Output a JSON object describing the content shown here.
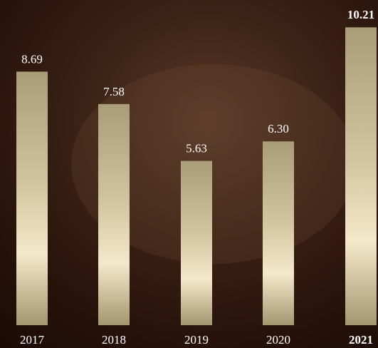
{
  "chart_data": {
    "type": "bar",
    "categories": [
      "2017",
      "2018",
      "2019",
      "2020",
      "2021"
    ],
    "values": [
      8.69,
      7.58,
      5.63,
      6.3,
      10.21
    ],
    "value_labels": [
      "8.69",
      "7.58",
      "5.63",
      "6.30",
      "10.21"
    ],
    "ylim": [
      0,
      11
    ]
  }
}
